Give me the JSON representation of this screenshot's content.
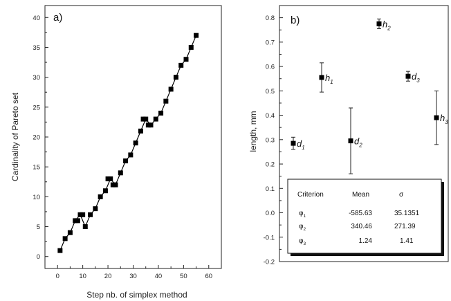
{
  "chart_data": [
    {
      "type": "scatter",
      "panel_label": "a)",
      "xlabel": "Step nb. of simplex method",
      "ylabel": "Cardinality of Pareto set",
      "xlim": [
        -5,
        65
      ],
      "ylim": [
        -2,
        42
      ],
      "xticks": [
        0,
        10,
        20,
        30,
        40,
        50,
        60
      ],
      "yticks": [
        0,
        5,
        10,
        15,
        20,
        25,
        30,
        35,
        40
      ],
      "marker": "square",
      "x": [
        1,
        3,
        5,
        7,
        9,
        11,
        13,
        15,
        17,
        19,
        21,
        23,
        25,
        27,
        29,
        31,
        33,
        35,
        37,
        39,
        41,
        43,
        45,
        47,
        49,
        51,
        53,
        55
      ],
      "y": [
        1,
        3,
        4,
        6,
        7,
        5,
        7,
        8,
        10,
        11,
        13,
        12,
        14,
        16,
        17,
        19,
        21,
        23,
        22,
        23,
        24,
        26,
        28,
        30,
        32,
        33,
        35,
        37
      ],
      "extra_points": [
        {
          "x": 8,
          "y": 6
        },
        {
          "x": 10,
          "y": 7
        },
        {
          "x": 20,
          "y": 13
        },
        {
          "x": 22,
          "y": 12
        },
        {
          "x": 34,
          "y": 23
        },
        {
          "x": 36,
          "y": 22
        }
      ]
    },
    {
      "type": "scatter",
      "panel_label": "b)",
      "xlabel": "",
      "ylabel": "length, mm",
      "ylim": [
        -0.2,
        0.85
      ],
      "yticks": [
        -0.2,
        -0.1,
        0.0,
        0.1,
        0.2,
        0.3,
        0.4,
        0.5,
        0.6,
        0.7,
        0.8
      ],
      "points": [
        {
          "label": "d",
          "sub": "1",
          "position": 1,
          "y": 0.285,
          "err": 0.025
        },
        {
          "label": "h",
          "sub": "1",
          "position": 2,
          "y": 0.555,
          "err": 0.06
        },
        {
          "label": "d",
          "sub": "2",
          "position": 3,
          "y": 0.295,
          "err": 0.135
        },
        {
          "label": "h",
          "sub": "2",
          "position": 4,
          "y": 0.775,
          "err": 0.02
        },
        {
          "label": "d",
          "sub": "3",
          "position": 5,
          "y": 0.56,
          "err": 0.02
        },
        {
          "label": "h",
          "sub": "3",
          "position": 6,
          "y": 0.39,
          "err": 0.11
        }
      ],
      "table": {
        "headers": [
          "Criterion",
          "Mean",
          "σ"
        ],
        "rows": [
          {
            "criterion": "φ",
            "sub": "1",
            "mean": "-585.63",
            "sigma": "35.1351"
          },
          {
            "criterion": "φ",
            "sub": "2",
            "mean": "340.46",
            "sigma": "271.39"
          },
          {
            "criterion": "φ",
            "sub": "3",
            "mean": "1.24",
            "sigma": "1.41"
          }
        ]
      }
    }
  ]
}
